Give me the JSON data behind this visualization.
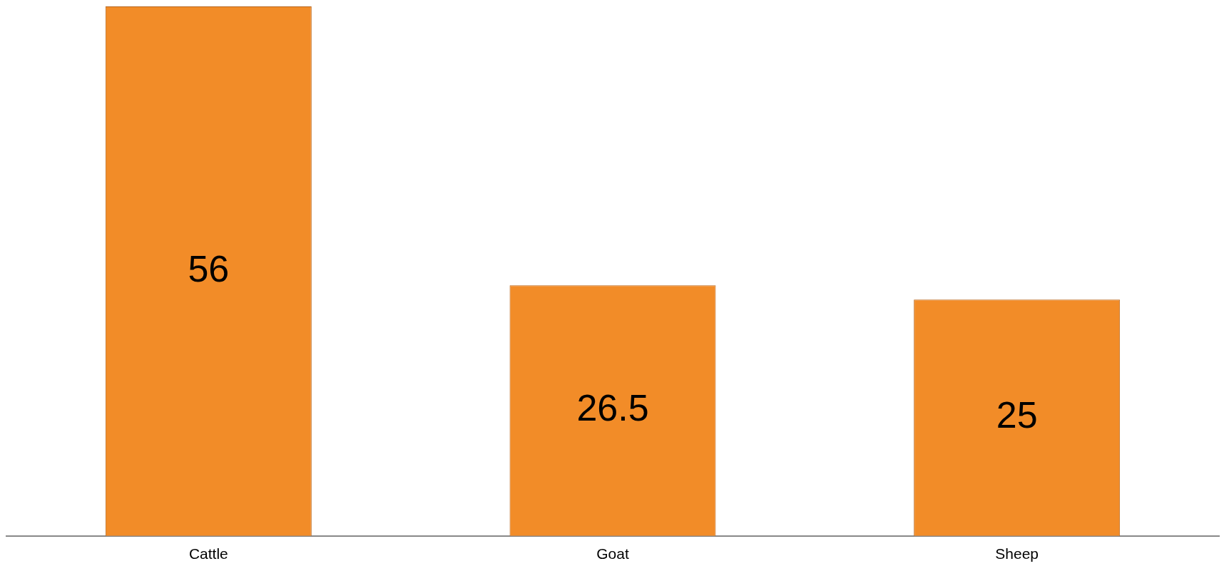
{
  "chart_data": {
    "type": "bar",
    "categories": [
      "Cattle",
      "Goat",
      "Sheep"
    ],
    "values": [
      56,
      26.5,
      25
    ],
    "color": "#f28c28",
    "data_labels": true,
    "grid": false,
    "legend": false
  }
}
